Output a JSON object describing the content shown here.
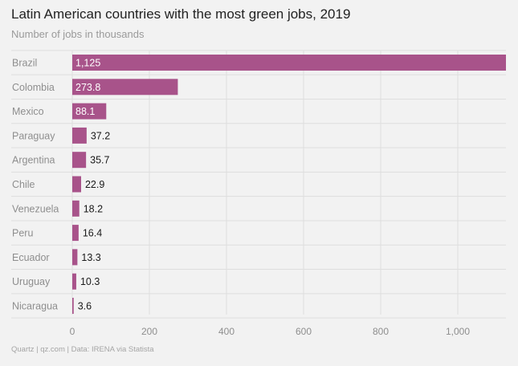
{
  "chart_data": {
    "type": "bar",
    "orientation": "horizontal",
    "title": "Latin American countries with the most green jobs, 2019",
    "subtitle": "Number of jobs in thousands",
    "categories": [
      "Brazil",
      "Colombia",
      "Mexico",
      "Paraguay",
      "Argentina",
      "Chile",
      "Venezuela",
      "Peru",
      "Ecuador",
      "Uruguay",
      "Nicaragua"
    ],
    "values": [
      1125,
      273.8,
      88.1,
      37.2,
      35.7,
      22.9,
      18.2,
      16.4,
      13.3,
      10.3,
      3.6
    ],
    "value_labels": [
      "1,125",
      "273.8",
      "88.1",
      "37.2",
      "35.7",
      "22.9",
      "18.2",
      "16.4",
      "13.3",
      "10.3",
      "3.6"
    ],
    "xlim": [
      0,
      1125
    ],
    "xticks": [
      0,
      200,
      400,
      600,
      800,
      1000
    ],
    "xtick_labels": [
      "0",
      "200",
      "400",
      "600",
      "800",
      "1,000"
    ],
    "grid": true,
    "source": "Quartz | qz.com | Data: IRENA via Statista"
  },
  "colors": {
    "bar": "#a8538a",
    "grid": "#dedede",
    "background": "#f2f2f2"
  }
}
